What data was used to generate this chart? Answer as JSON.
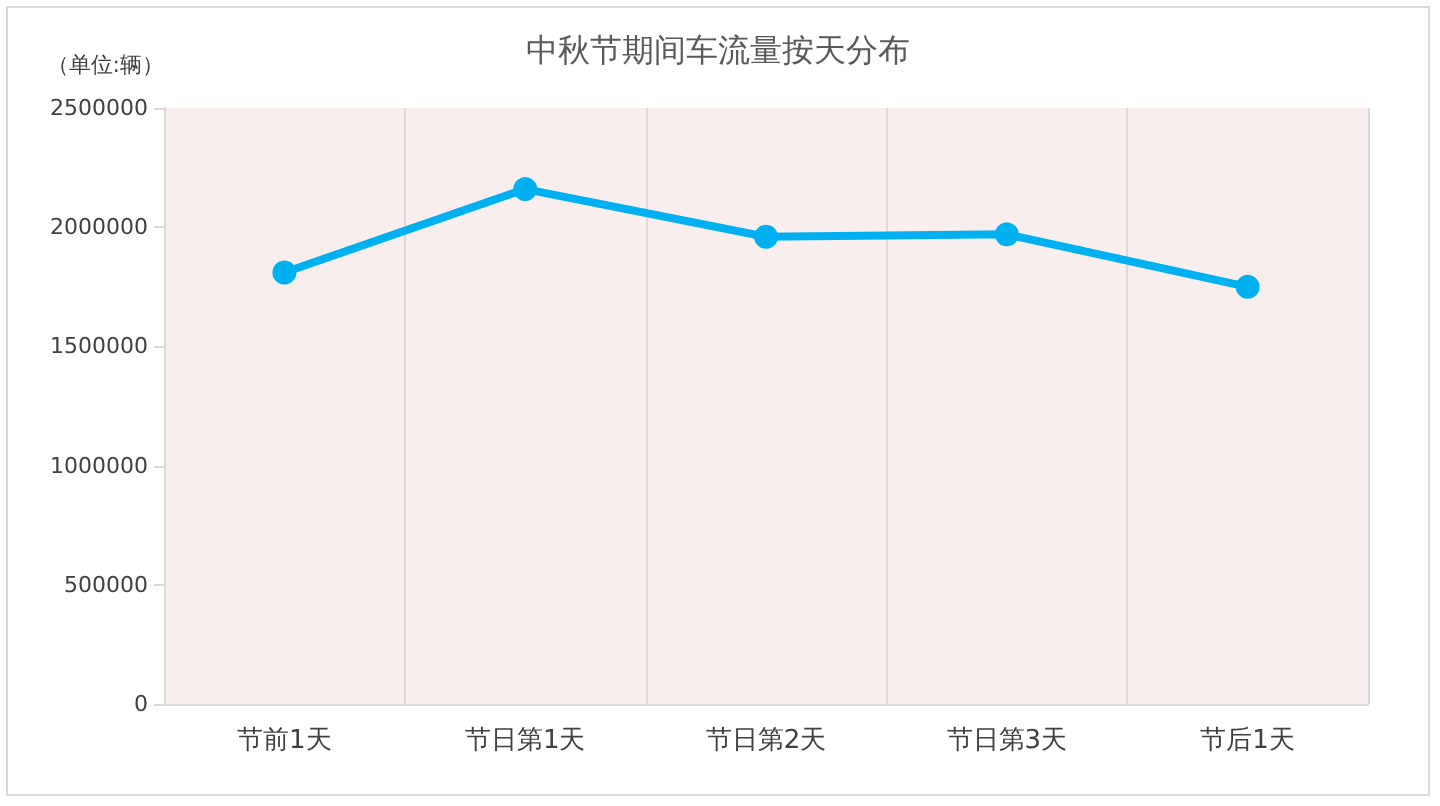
{
  "chart_data": {
    "type": "line",
    "title": "中秋节期间车流量按天分布",
    "ylabel": "（单位:辆）",
    "categories": [
      "节前1天",
      "节日第1天",
      "节日第2天",
      "节日第3天",
      "节后1天"
    ],
    "series": [
      {
        "color": "#00b0f0",
        "values": [
          1810000,
          2160000,
          1960000,
          1970000,
          1750000
        ]
      }
    ],
    "ylim": [
      0,
      2500000
    ],
    "yticks": [
      0,
      500000,
      1000000,
      1500000,
      2000000,
      2500000
    ],
    "grid": "x",
    "marker": "circle",
    "line_style": "solid"
  }
}
